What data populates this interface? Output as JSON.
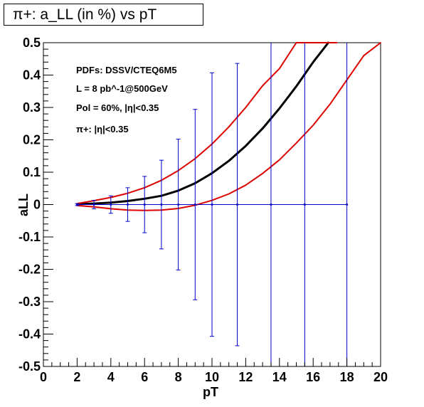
{
  "chart_data": {
    "type": "line",
    "title": "π+: a_LL (in %) vs pT",
    "xlabel": "pT",
    "ylabel": "aLL",
    "xlim": [
      0,
      20
    ],
    "ylim": [
      -0.5,
      0.5
    ],
    "xticks": [
      "0",
      "2",
      "4",
      "6",
      "8",
      "10",
      "12",
      "14",
      "16",
      "18",
      "20"
    ],
    "yticks": [
      "-0.5",
      "-0.4",
      "-0.3",
      "-0.2",
      "-0.1",
      "0",
      "0.1",
      "0.2",
      "0.3",
      "0.4",
      "0.5"
    ],
    "annotations": [
      "PDFs: DSSV/CTEQ6M5",
      "L = 8 pb^-1@500GeV",
      "Pol = 60%, |η|<0.35",
      "π+: |η|<0.35"
    ],
    "series": [
      {
        "color": "#000000",
        "x": [
          2,
          3,
          4,
          5,
          6,
          7,
          8,
          9,
          10,
          11,
          12,
          13,
          14,
          15,
          16,
          16.9
        ],
        "y": [
          0.001,
          0.003,
          0.006,
          0.011,
          0.018,
          0.027,
          0.043,
          0.066,
          0.097,
          0.135,
          0.181,
          0.235,
          0.297,
          0.365,
          0.44,
          0.5
        ]
      },
      {
        "color": "#dd0000",
        "x": [
          2,
          3,
          4,
          5,
          6,
          7,
          8,
          9,
          10,
          11,
          12,
          13,
          14,
          15,
          16,
          17,
          17.4
        ],
        "y": [
          0.003,
          0.012,
          0.022,
          0.035,
          0.052,
          0.075,
          0.105,
          0.142,
          0.187,
          0.24,
          0.3,
          0.367,
          0.42,
          0.5,
          0.5,
          0.5,
          0.5
        ]
      },
      {
        "color": "#dd0000",
        "x": [
          2,
          3,
          4,
          5,
          6,
          7,
          8,
          9,
          10,
          11,
          12,
          13,
          14,
          15,
          16,
          17,
          18,
          19,
          20
        ],
        "y": [
          -0.003,
          -0.007,
          -0.013,
          -0.017,
          -0.018,
          -0.017,
          -0.012,
          -0.002,
          0.013,
          0.033,
          0.06,
          0.096,
          0.138,
          0.19,
          0.245,
          0.31,
          0.385,
          0.46,
          0.52
        ]
      }
    ],
    "error_bars": {
      "color": "#0000cc",
      "x": [
        2,
        3,
        4,
        5,
        6,
        7,
        8,
        9,
        10,
        11.5,
        13.5,
        15.5,
        18
      ],
      "y": [
        0,
        0,
        0,
        0,
        0,
        0,
        0,
        0,
        0,
        0,
        0,
        0,
        0
      ],
      "err": [
        0.003,
        0.013,
        0.027,
        0.052,
        0.087,
        0.137,
        0.202,
        0.294,
        0.407,
        0.436,
        0.6,
        0.6,
        0.6
      ],
      "x_span": [
        2,
        18
      ]
    }
  }
}
